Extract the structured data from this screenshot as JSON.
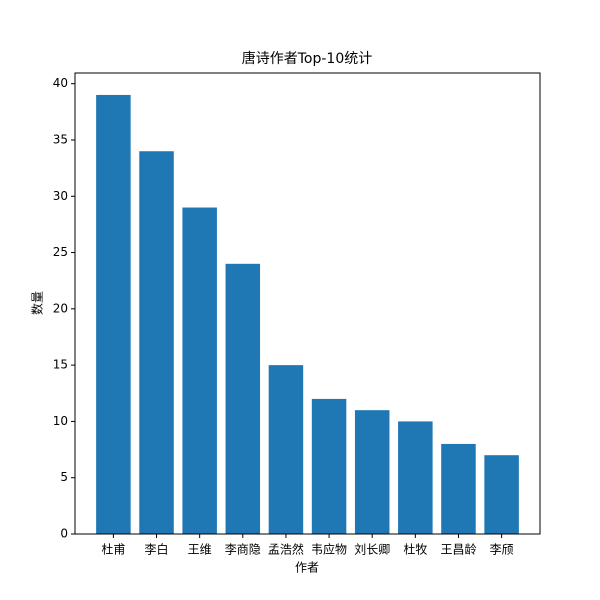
{
  "chart_data": {
    "type": "bar",
    "title": "唐诗作者Top-10统计",
    "x_label": "作者",
    "y_label": "数量",
    "categories": [
      "杜甫",
      "李白",
      "王维",
      "李商隐",
      "孟浩然",
      "韦应物",
      "刘长卿",
      "杜牧",
      "王昌龄",
      "李颀"
    ],
    "values": [
      39,
      34,
      29,
      24,
      15,
      12,
      11,
      10,
      8,
      7
    ],
    "color": "#1f77b4",
    "ylim": [
      0,
      40.95
    ],
    "yticks": [
      0,
      5,
      10,
      15,
      20,
      25,
      30,
      35,
      40
    ],
    "grid": false
  }
}
